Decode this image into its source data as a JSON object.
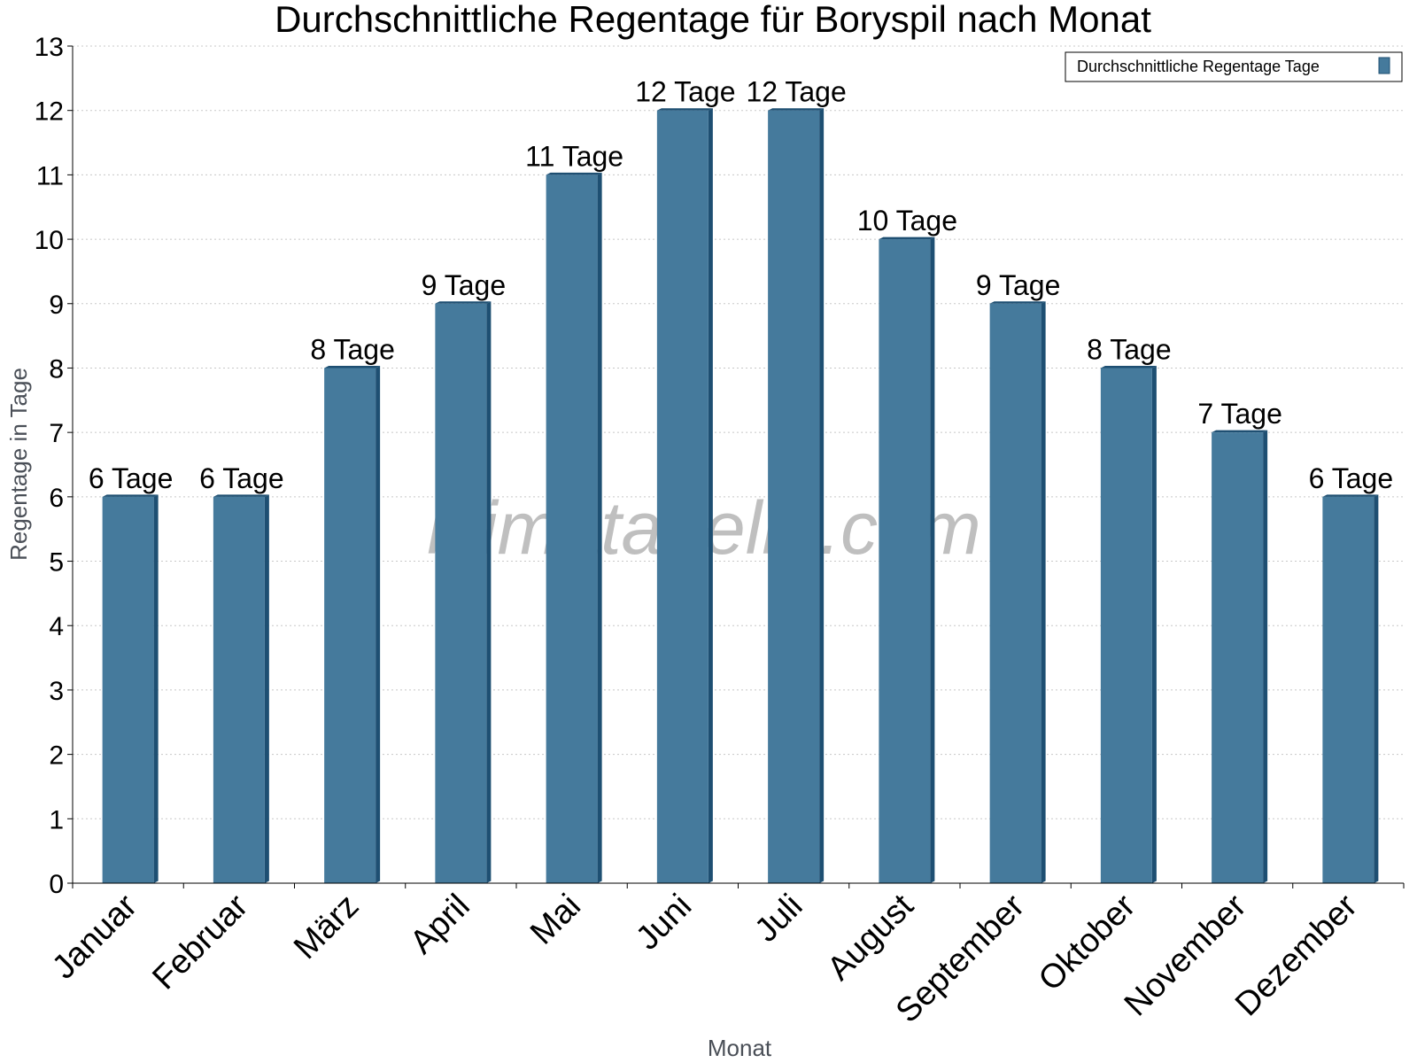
{
  "chart_data": {
    "type": "bar",
    "title": "Durchschnittliche Regentage für Boryspil nach Monat",
    "xlabel": "Monat",
    "ylabel": "Regentage in Tage",
    "categories": [
      "Januar",
      "Februar",
      "März",
      "April",
      "Mai",
      "Juni",
      "Juli",
      "August",
      "September",
      "Oktober",
      "November",
      "Dezember"
    ],
    "series": [
      {
        "name": "Durchschnittliche Regentage Tage",
        "values": [
          6,
          6,
          8,
          9,
          11,
          12,
          12,
          10,
          9,
          8,
          7,
          6
        ],
        "data_labels": [
          "6 Tage",
          "6 Tage",
          "8 Tage",
          "9 Tage",
          "11 Tage",
          "12 Tage",
          "12 Tage",
          "10 Tage",
          "9 Tage",
          "8 Tage",
          "7 Tage",
          "6 Tage"
        ]
      }
    ],
    "ylim": [
      0,
      13
    ],
    "yticks": [
      "0",
      "1",
      "2",
      "3",
      "4",
      "5",
      "6",
      "7",
      "8",
      "9",
      "10",
      "11",
      "12",
      "13"
    ],
    "grid": true,
    "legend_position": "top-right",
    "watermark": "klimatabelle.com",
    "colors": {
      "bar": "#457a9c",
      "bar_side": "#1e4f72",
      "grid": "#c8c8c8",
      "axis": "#000000"
    }
  }
}
